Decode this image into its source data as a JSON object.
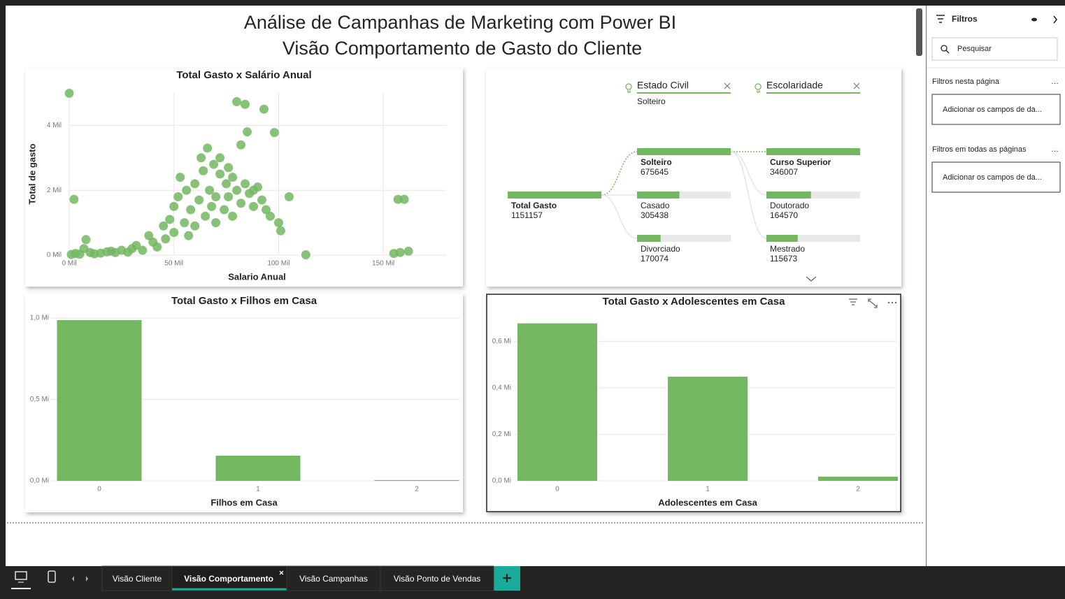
{
  "header": {
    "title_line1": "Análise de Campanhas de Marketing com Power BI",
    "title_line2": "Visão Comportamento de Gasto do Cliente"
  },
  "chart_data": [
    {
      "type": "scatter",
      "title": "Total Gasto x Salário Anual",
      "x_label": "Salario Anual",
      "y_label": "Total de gasto",
      "color": "#73b761",
      "grid": true,
      "xlim": [
        0,
        180000
      ],
      "ylim": [
        0,
        5000
      ],
      "xticks": [
        {
          "value": 0,
          "label": "0 Mil"
        },
        {
          "value": 50000,
          "label": "50 Mil"
        },
        {
          "value": 100000,
          "label": "100 Mil"
        },
        {
          "value": 150000,
          "label": "150 Mil"
        }
      ],
      "yticks": [
        {
          "value": 0,
          "label": "0 Mil"
        },
        {
          "value": 2000,
          "label": "2 Mil"
        },
        {
          "value": 4000,
          "label": "4 Mil"
        }
      ],
      "x": [
        1000,
        3000,
        5000,
        7000,
        8000,
        10000,
        12000,
        15000,
        18000,
        20000,
        22000,
        25000,
        28000,
        30000,
        32000,
        35000,
        38000,
        40000,
        42000,
        45000,
        46000,
        48000,
        50000,
        50000,
        52000,
        53000,
        55000,
        56000,
        57000,
        58000,
        60000,
        60000,
        62000,
        63000,
        64000,
        65000,
        66000,
        67000,
        68000,
        69000,
        70000,
        70000,
        72000,
        72000,
        74000,
        75000,
        76000,
        76000,
        78000,
        78000,
        80000,
        80000,
        82000,
        82000,
        84000,
        84000,
        85000,
        86000,
        88000,
        88000,
        90000,
        92000,
        93000,
        94000,
        96000,
        98000,
        100000,
        101000,
        105000,
        113000,
        0,
        2300,
        155000,
        157000,
        160000,
        158000,
        162000
      ],
      "y": [
        20,
        50,
        30,
        200,
        480,
        80,
        40,
        60,
        100,
        120,
        80,
        150,
        90,
        200,
        300,
        150,
        600,
        400,
        250,
        900,
        500,
        1100,
        700,
        1500,
        1800,
        2400,
        1000,
        2000,
        600,
        1400,
        2200,
        900,
        1700,
        3000,
        2600,
        1200,
        3300,
        2000,
        1500,
        2800,
        1800,
        1000,
        2500,
        3000,
        1400,
        2200,
        1800,
        2700,
        2400,
        1200,
        4730,
        2000,
        3400,
        1600,
        4650,
        2200,
        3800,
        1900,
        2000,
        1500,
        2100,
        1700,
        4500,
        1400,
        1200,
        3780,
        1000,
        750,
        1800,
        10,
        4990,
        1720,
        50,
        1720,
        1720,
        80,
        120
      ]
    },
    {
      "type": "decomposition_tree",
      "color": "#73b761",
      "root": {
        "label": "Total Gasto",
        "value": 1151157
      },
      "levels": [
        {
          "field": "Estado Civil",
          "filter": "Solteiro",
          "categories": [
            "Solteiro",
            "Casado",
            "Divorciado"
          ],
          "values": [
            675645,
            305438,
            170074
          ]
        },
        {
          "field": "Escolaridade",
          "categories": [
            "Curso Superior",
            "Doutorado",
            "Mestrado"
          ],
          "values": [
            346007,
            164570,
            115673
          ]
        }
      ]
    },
    {
      "type": "bar",
      "title": "Total Gasto x Filhos em Casa",
      "x_label": "Filhos em Casa",
      "color": "#73b761",
      "grid": true,
      "categories": [
        "0",
        "1",
        "2"
      ],
      "values": [
        987000,
        155000,
        5000
      ],
      "ylim": [
        0,
        1000000
      ],
      "yticks": [
        {
          "value": 0,
          "label": "0,0 Mi"
        },
        {
          "value": 500000,
          "label": "0,5 Mi"
        },
        {
          "value": 1000000,
          "label": "1,0 Mi"
        }
      ]
    },
    {
      "type": "bar",
      "title": "Total Gasto x Adolescentes em Casa",
      "x_label": "Adolescentes em Casa",
      "color": "#73b761",
      "grid": true,
      "categories": [
        "0",
        "1",
        "2"
      ],
      "values": [
        677000,
        448000,
        18000
      ],
      "ylim": [
        0,
        700000
      ],
      "yticks": [
        {
          "value": 0,
          "label": "0,0 Mi"
        },
        {
          "value": 200000,
          "label": "0,2 Mi"
        },
        {
          "value": 400000,
          "label": "0,4 Mi"
        },
        {
          "value": 600000,
          "label": "0,6 Mi"
        }
      ]
    }
  ],
  "filters_pane": {
    "title": "Filtros",
    "search_placeholder": "Pesquisar",
    "page_filters_heading": "Filtros nesta página",
    "page_filters_drop": "Adicionar os campos de da...",
    "all_filters_heading": "Filtros em todas as páginas",
    "all_filters_drop": "Adicionar os campos de da..."
  },
  "page_tabs": [
    "Visão Cliente",
    "Visão Comportamento",
    "Visão Campanhas",
    "Visão Ponto de Vendas"
  ],
  "active_tab": 1
}
